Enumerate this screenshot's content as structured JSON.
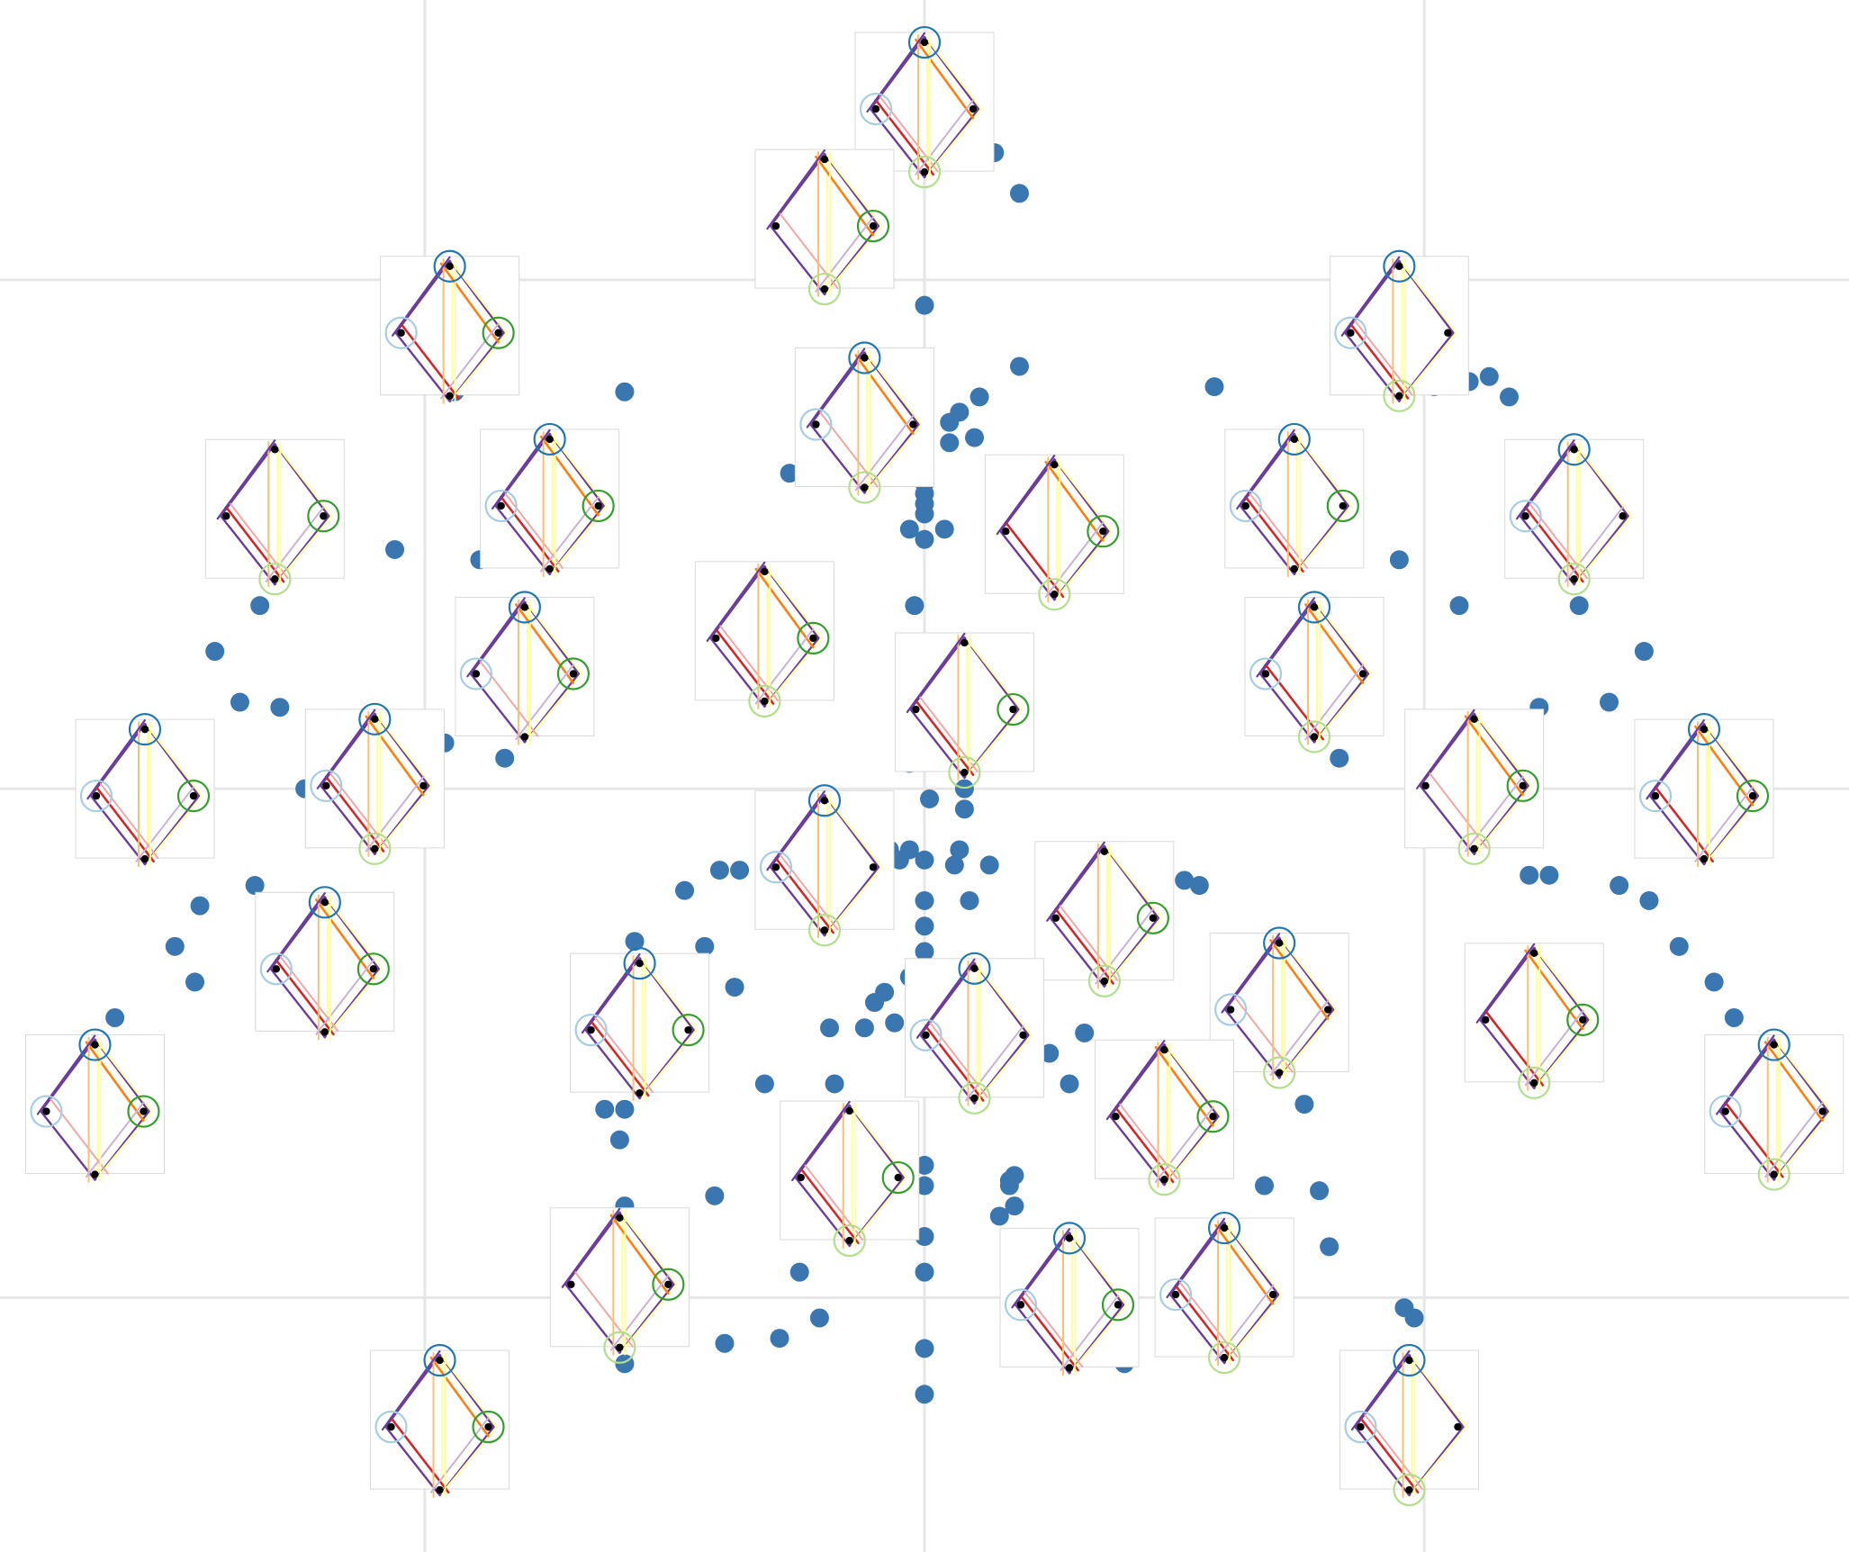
{
  "chart_data": {
    "type": "scatter",
    "title": "",
    "xlabel": "",
    "ylabel": "",
    "grid": true,
    "xlim": [
      -1.85,
      1.85
    ],
    "ylim": [
      -1.5,
      1.55
    ],
    "x_gridlines": [
      -1,
      0,
      1
    ],
    "y_gridlines": [
      -1,
      0,
      1
    ],
    "colors": {
      "point": "#3a76b0",
      "grid": "#e6e6e6",
      "hypergraph_palette": [
        "#d62728",
        "#f4a6a6",
        "#6a3d9a",
        "#cab2d6",
        "#ff7f0e",
        "#fdbf6f",
        "#ffff99",
        "#1f78b4",
        "#a6cee3",
        "#33a02c",
        "#b2df8a"
      ]
    },
    "points": [
      [
        0.0,
        1.34
      ],
      [
        0.14,
        1.25
      ],
      [
        0.19,
        1.17
      ],
      [
        0.0,
        0.95
      ],
      [
        0.19,
        0.83
      ],
      [
        -0.84,
        0.81
      ],
      [
        -0.99,
        0.8
      ],
      [
        -0.94,
        0.78
      ],
      [
        -0.6,
        0.78
      ],
      [
        0.11,
        0.77
      ],
      [
        0.07,
        0.74
      ],
      [
        0.05,
        0.72
      ],
      [
        0.1,
        0.69
      ],
      [
        0.05,
        0.68
      ],
      [
        0.58,
        0.79
      ],
      [
        1.02,
        0.79
      ],
      [
        1.09,
        0.8
      ],
      [
        1.13,
        0.81
      ],
      [
        1.17,
        0.77
      ],
      [
        0.0,
        0.65
      ],
      [
        0.0,
        0.62
      ],
      [
        0.0,
        0.6
      ],
      [
        0.0,
        0.58
      ],
      [
        0.0,
        0.56
      ],
      [
        0.0,
        0.54
      ],
      [
        -0.03,
        0.51
      ],
      [
        0.04,
        0.51
      ],
      [
        0.0,
        0.49
      ],
      [
        -0.27,
        0.62
      ],
      [
        0.31,
        0.43
      ],
      [
        -0.79,
        0.56
      ],
      [
        -0.89,
        0.45
      ],
      [
        -1.06,
        0.47
      ],
      [
        -1.33,
        0.36
      ],
      [
        -1.42,
        0.27
      ],
      [
        -0.02,
        0.36
      ],
      [
        0.79,
        0.56
      ],
      [
        0.95,
        0.45
      ],
      [
        1.07,
        0.36
      ],
      [
        1.31,
        0.36
      ],
      [
        1.28,
        0.45
      ],
      [
        1.44,
        0.27
      ],
      [
        -1.29,
        0.16
      ],
      [
        -1.37,
        0.17
      ],
      [
        -0.96,
        0.09
      ],
      [
        -0.84,
        0.06
      ],
      [
        1.23,
        0.16
      ],
      [
        1.37,
        0.17
      ],
      [
        0.83,
        0.06
      ],
      [
        -0.03,
        0.05
      ],
      [
        0.08,
        0.0
      ],
      [
        0.01,
        0.16
      ],
      [
        0.01,
        -0.02
      ],
      [
        0.08,
        -0.04
      ],
      [
        -1.24,
        0.0
      ],
      [
        -0.07,
        -0.12
      ],
      [
        -0.03,
        -0.12
      ],
      [
        0.07,
        -0.12
      ],
      [
        -0.05,
        -0.14
      ],
      [
        0.0,
        -0.14
      ],
      [
        0.06,
        -0.15
      ],
      [
        0.13,
        -0.15
      ],
      [
        -0.48,
        -0.2
      ],
      [
        -0.24,
        -0.24
      ],
      [
        0.09,
        -0.22
      ],
      [
        0.0,
        -0.22
      ],
      [
        0.0,
        -0.27
      ],
      [
        0.0,
        -0.32
      ],
      [
        -1.34,
        -0.19
      ],
      [
        -1.45,
        -0.23
      ],
      [
        -1.5,
        -0.31
      ],
      [
        -1.46,
        -0.38
      ],
      [
        -1.62,
        -0.45
      ],
      [
        -0.58,
        -0.3
      ],
      [
        -0.44,
        -0.31
      ],
      [
        -0.37,
        -0.16
      ],
      [
        -0.41,
        -0.16
      ],
      [
        1.21,
        -0.17
      ],
      [
        1.25,
        -0.17
      ],
      [
        1.39,
        -0.19
      ],
      [
        1.45,
        -0.22
      ],
      [
        1.51,
        -0.31
      ],
      [
        1.58,
        -0.38
      ],
      [
        1.62,
        -0.45
      ],
      [
        0.55,
        -0.19
      ],
      [
        0.52,
        -0.18
      ],
      [
        -0.03,
        -0.37
      ],
      [
        -0.08,
        -0.4
      ],
      [
        -0.1,
        -0.42
      ],
      [
        -0.38,
        -0.39
      ],
      [
        -0.65,
        -0.47
      ],
      [
        -0.06,
        -0.46
      ],
      [
        -0.19,
        -0.47
      ],
      [
        -0.12,
        -0.47
      ],
      [
        -0.47,
        -0.54
      ],
      [
        -0.32,
        -0.58
      ],
      [
        -0.18,
        -0.58
      ],
      [
        0.25,
        -0.52
      ],
      [
        0.29,
        -0.58
      ],
      [
        0.32,
        -0.48
      ],
      [
        0.05,
        -0.49
      ],
      [
        -0.64,
        -0.63
      ],
      [
        -0.6,
        -0.63
      ],
      [
        -0.61,
        -0.69
      ],
      [
        -0.15,
        -0.69
      ],
      [
        -0.09,
        -0.7
      ],
      [
        -0.13,
        -0.64
      ],
      [
        -0.24,
        -0.76
      ],
      [
        -0.42,
        -0.8
      ],
      [
        0.0,
        -0.74
      ],
      [
        0.0,
        -0.78
      ],
      [
        0.18,
        -0.82
      ],
      [
        0.17,
        -0.77
      ],
      [
        0.17,
        -0.78
      ],
      [
        0.18,
        -0.76
      ],
      [
        0.49,
        -0.74
      ],
      [
        0.68,
        -0.78
      ],
      [
        0.79,
        -0.79
      ],
      [
        0.76,
        -0.62
      ],
      [
        -0.6,
        -0.82
      ],
      [
        -0.6,
        -0.89
      ],
      [
        -0.61,
        -0.96
      ],
      [
        0.0,
        -0.88
      ],
      [
        0.15,
        -0.84
      ],
      [
        -0.25,
        -0.95
      ],
      [
        0.0,
        -0.95
      ],
      [
        0.81,
        -0.9
      ],
      [
        -0.6,
        -1.06
      ],
      [
        -0.21,
        -1.04
      ],
      [
        -0.29,
        -1.08
      ],
      [
        0.0,
        -1.1
      ],
      [
        0.32,
        -1.08
      ],
      [
        0.4,
        -1.13
      ],
      [
        0.96,
        -1.02
      ],
      [
        0.98,
        -1.04
      ],
      [
        -0.6,
        -1.13
      ],
      [
        -0.4,
        -1.09
      ],
      [
        0.0,
        -1.19
      ]
    ],
    "insets": [
      [
        0.0,
        1.35
      ],
      [
        -0.2,
        1.12
      ],
      [
        -0.95,
        0.91
      ],
      [
        0.95,
        0.91
      ],
      [
        -1.3,
        0.55
      ],
      [
        -0.75,
        0.57
      ],
      [
        -0.12,
        0.73
      ],
      [
        0.26,
        0.52
      ],
      [
        0.74,
        0.57
      ],
      [
        1.3,
        0.55
      ],
      [
        -0.32,
        0.31
      ],
      [
        -0.8,
        0.24
      ],
      [
        0.78,
        0.24
      ],
      [
        0.08,
        0.17
      ],
      [
        -1.56,
        0.0
      ],
      [
        -1.1,
        0.02
      ],
      [
        1.1,
        0.02
      ],
      [
        1.56,
        0.0
      ],
      [
        -0.2,
        -0.14
      ],
      [
        0.36,
        -0.24
      ],
      [
        -1.2,
        -0.34
      ],
      [
        0.71,
        -0.42
      ],
      [
        1.22,
        -0.44
      ],
      [
        -0.57,
        -0.46
      ],
      [
        0.1,
        -0.47
      ],
      [
        0.48,
        -0.63
      ],
      [
        -1.66,
        -0.62
      ],
      [
        1.7,
        -0.62
      ],
      [
        -0.15,
        -0.75
      ],
      [
        0.29,
        -1.0
      ],
      [
        0.6,
        -0.98
      ],
      [
        -0.61,
        -0.96
      ],
      [
        -0.97,
        -1.24
      ],
      [
        0.97,
        -1.24
      ]
    ]
  }
}
